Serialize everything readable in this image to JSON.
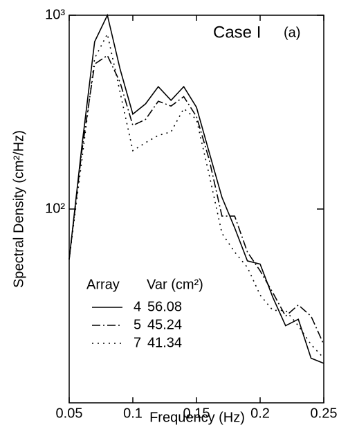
{
  "chart_data": {
    "type": "line",
    "annotations": [
      "Case I",
      "(a)"
    ],
    "xlabel": "Frequency (Hz)",
    "ylabel": "Spectral Density (cm²/Hz)",
    "x": [
      0.05,
      0.06,
      0.07,
      0.08,
      0.09,
      0.1,
      0.11,
      0.12,
      0.13,
      0.14,
      0.15,
      0.16,
      0.17,
      0.18,
      0.19,
      0.2,
      0.21,
      0.22,
      0.23,
      0.24,
      0.25
    ],
    "series": [
      {
        "name": "4",
        "var": 56.08,
        "color": "#000000",
        "dash": "solid",
        "values": [
          55,
          212,
          730,
          1000,
          527,
          309,
          349,
          428,
          364,
          428,
          335,
          196,
          115,
          80,
          54,
          52,
          35,
          25,
          27,
          17,
          16
        ]
      },
      {
        "name": "5",
        "var": 45.24,
        "color": "#000000",
        "dash": "dashdot",
        "values": [
          55,
          200,
          560,
          620,
          450,
          270,
          290,
          360,
          340,
          380,
          300,
          180,
          92,
          92,
          60,
          48,
          37,
          28,
          32,
          28,
          20
        ]
      },
      {
        "name": "7",
        "var": 41.34,
        "color": "#000000",
        "dash": "dotted",
        "values": [
          55,
          180,
          600,
          800,
          400,
          200,
          220,
          240,
          250,
          330,
          290,
          150,
          75,
          60,
          50,
          36,
          30,
          30,
          25,
          20,
          17
        ]
      }
    ],
    "legend_titles": [
      "Array",
      "Var (cm²)"
    ],
    "legend": "lower left",
    "xlim": [
      0.05,
      0.25
    ],
    "ylim": [
      10,
      1000
    ],
    "xticks": [
      0.05,
      0.1,
      0.15,
      0.2,
      0.25
    ],
    "yticks": [
      {
        "value": 100,
        "label": "10²"
      },
      {
        "value": 1000,
        "label": "10³"
      }
    ],
    "log_y": true
  }
}
